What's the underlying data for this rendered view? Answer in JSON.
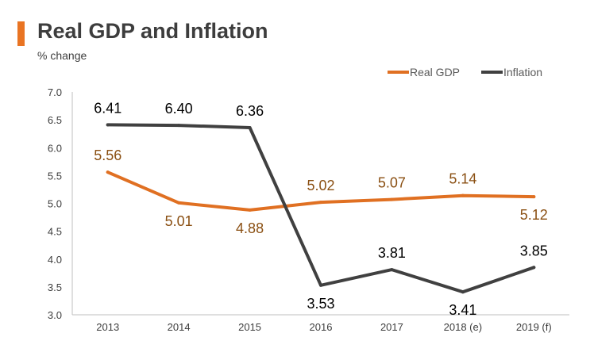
{
  "header": {
    "title": "Real GDP and Inflation",
    "subtitle": "% change"
  },
  "colors": {
    "accent": "#E97423",
    "real_gdp": "#E07022",
    "inflation": "#404040",
    "label_gdp": "#8A4F12",
    "label_inflation": "#000000",
    "axis": "#BFBFBF",
    "text": "#3D3D3D"
  },
  "chart_data": {
    "type": "line",
    "title": "Real GDP and Inflation",
    "ylabel": "% change",
    "xlabel": "",
    "categories": [
      "2013",
      "2014",
      "2015",
      "2016",
      "2017",
      "2018 (e)",
      "2019 (f)"
    ],
    "ylim": [
      3.0,
      7.0
    ],
    "yticks": [
      "3.0",
      "3.5",
      "4.0",
      "4.5",
      "5.0",
      "5.5",
      "6.0",
      "6.5",
      "7.0"
    ],
    "grid": false,
    "legend_position": "top-right",
    "series": [
      {
        "name": "Real GDP",
        "values": [
          5.56,
          5.01,
          4.88,
          5.02,
          5.07,
          5.14,
          5.12
        ],
        "labels": [
          "5.56",
          "5.01",
          "4.88",
          "5.02",
          "5.07",
          "5.14",
          "5.12"
        ],
        "label_side": [
          "above",
          "below",
          "below",
          "above",
          "above",
          "above",
          "below"
        ]
      },
      {
        "name": "Inflation",
        "values": [
          6.41,
          6.4,
          6.36,
          3.53,
          3.81,
          3.41,
          3.85
        ],
        "labels": [
          "6.41",
          "6.40",
          "6.36",
          "3.53",
          "3.81",
          "3.41",
          "3.85"
        ],
        "label_side": [
          "above",
          "above",
          "above",
          "below",
          "above",
          "below",
          "above"
        ]
      }
    ]
  }
}
